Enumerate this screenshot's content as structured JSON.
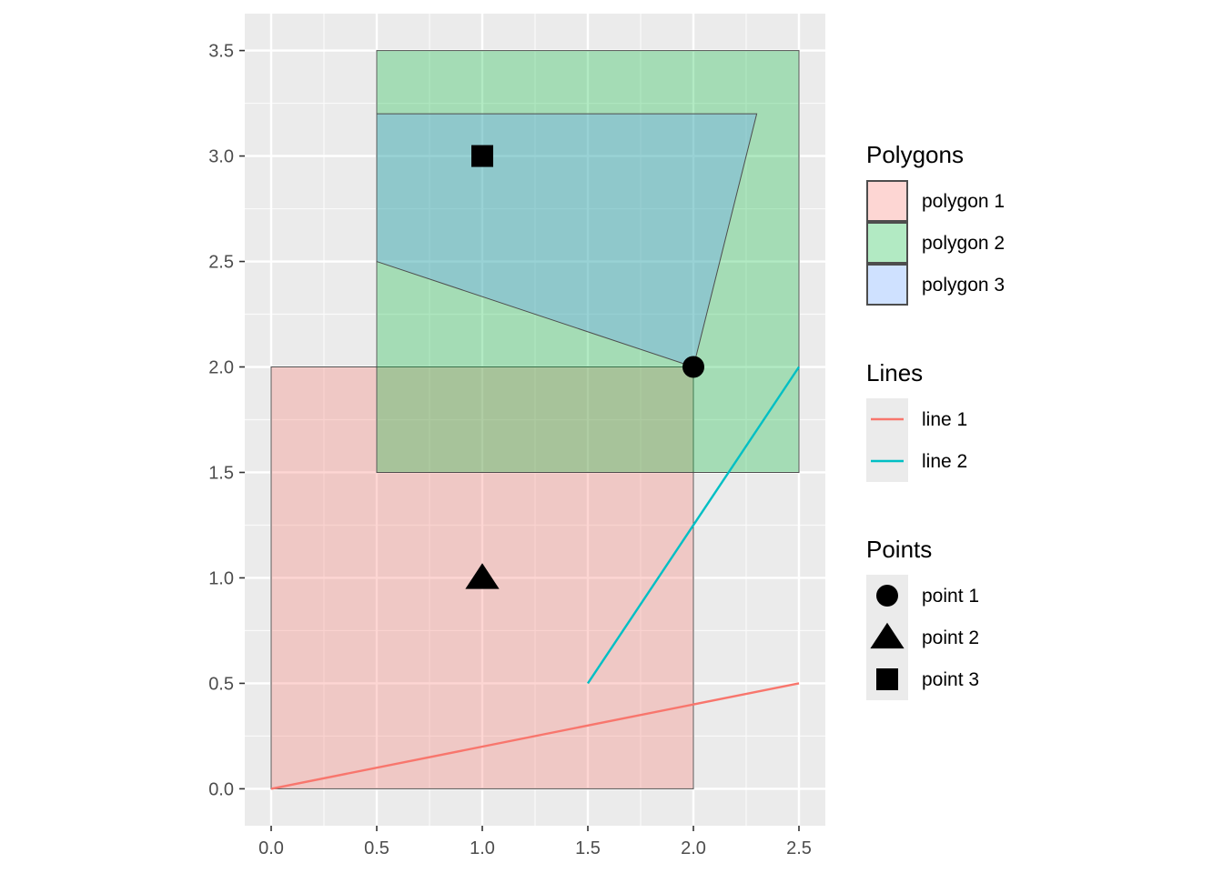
{
  "chart_data": {
    "type": "polygon-line-point (spatial)",
    "xlim": [
      -0.125,
      2.625
    ],
    "ylim": [
      -0.175,
      3.675
    ],
    "x_ticks": [
      0.0,
      0.5,
      1.0,
      1.5,
      2.0,
      2.5
    ],
    "x_tick_labels": [
      "0.0",
      "0.5",
      "1.0",
      "1.5",
      "2.0",
      "2.5"
    ],
    "y_ticks": [
      0.0,
      0.5,
      1.0,
      1.5,
      2.0,
      2.5,
      3.0,
      3.5
    ],
    "y_tick_labels": [
      "0.0",
      "0.5",
      "1.0",
      "1.5",
      "2.0",
      "2.5",
      "3.0",
      "3.5"
    ],
    "grid": true,
    "panel_background": "#ebebeb",
    "polygons": [
      {
        "name": "polygon 1",
        "fill": "#F8766D",
        "coords": [
          [
            0,
            0
          ],
          [
            2,
            0
          ],
          [
            2,
            2
          ],
          [
            0,
            2
          ]
        ]
      },
      {
        "name": "polygon 2",
        "fill": "#00BA38",
        "coords": [
          [
            0.5,
            1.5
          ],
          [
            2.5,
            1.5
          ],
          [
            2.5,
            3.5
          ],
          [
            0.5,
            3.5
          ]
        ]
      },
      {
        "name": "polygon 3",
        "fill": "#619CFF",
        "coords": [
          [
            0.5,
            2.5
          ],
          [
            2,
            2
          ],
          [
            2.3,
            3.2
          ],
          [
            0.5,
            3.2
          ]
        ]
      }
    ],
    "lines": [
      {
        "name": "line 1",
        "color": "#F8766D",
        "coords": [
          [
            0,
            0
          ],
          [
            2.5,
            0.5
          ]
        ]
      },
      {
        "name": "line 2",
        "color": "#00BFC4",
        "coords": [
          [
            1.5,
            0.5
          ],
          [
            2.5,
            2
          ]
        ]
      }
    ],
    "points": [
      {
        "name": "point 1",
        "shape": "circle",
        "x": 2,
        "y": 2
      },
      {
        "name": "point 2",
        "shape": "triangle",
        "x": 1,
        "y": 1
      },
      {
        "name": "point 3",
        "shape": "square",
        "x": 1,
        "y": 3
      }
    ],
    "legends": [
      {
        "title": "Polygons",
        "items": [
          "polygon 1",
          "polygon 2",
          "polygon 3"
        ]
      },
      {
        "title": "Lines",
        "items": [
          "line 1",
          "line 2"
        ]
      },
      {
        "title": "Points",
        "items": [
          "point 1",
          "point 2",
          "point 3"
        ]
      }
    ],
    "legend_position": "right"
  }
}
